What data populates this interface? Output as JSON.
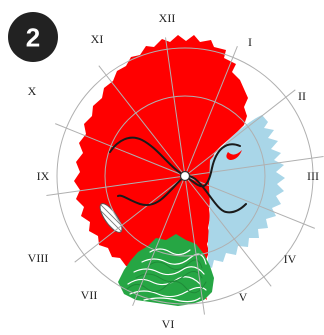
{
  "badge": {
    "number": "2"
  },
  "clock_numerals": [
    "XII",
    "I",
    "II",
    "III",
    "IV",
    "V",
    "VI",
    "VII",
    "VIII",
    "IX",
    "X",
    "XI"
  ],
  "colors": {
    "red_region": "#ff0000",
    "blue_region": "#a9d6e8",
    "green_region": "#26a644",
    "curve": "#1a1a1a",
    "grid": "#b0b0b0",
    "badge": "#222222"
  }
}
